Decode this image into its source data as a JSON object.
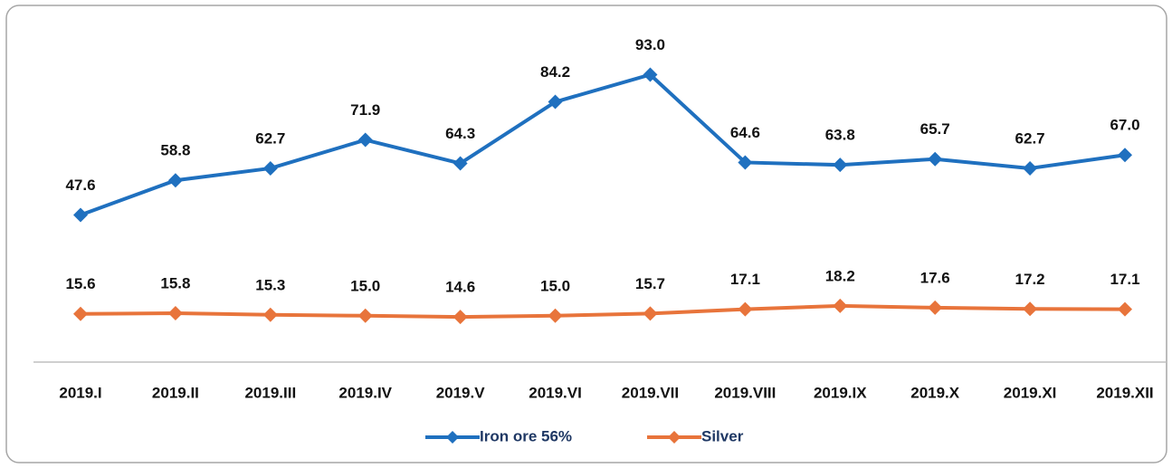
{
  "chart_data": {
    "type": "line",
    "categories": [
      "2019.I",
      "2019.II",
      "2019.III",
      "2019.IV",
      "2019.V",
      "2019.VI",
      "2019.VII",
      "2019.VIII",
      "2019.IX",
      "2019.X",
      "2019.XI",
      "2019.XII"
    ],
    "series": [
      {
        "name": "Iron ore 56%",
        "color": "#1f70bf",
        "values": [
          47.6,
          58.8,
          62.7,
          71.9,
          64.3,
          84.2,
          93.0,
          64.6,
          63.8,
          65.7,
          62.7,
          67.0
        ],
        "value_labels": [
          "47.6",
          "58.8",
          "62.7",
          "71.9",
          "64.3",
          "84.2",
          "93.0",
          "64.6",
          "63.8",
          "65.7",
          "62.7",
          "67.0"
        ]
      },
      {
        "name": "Silver",
        "color": "#e8743b",
        "values": [
          15.6,
          15.8,
          15.3,
          15.0,
          14.6,
          15.0,
          15.7,
          17.1,
          18.2,
          17.6,
          17.2,
          17.1
        ],
        "value_labels": [
          "15.6",
          "15.8",
          "15.3",
          "15.0",
          "14.6",
          "15.0",
          "15.7",
          "17.1",
          "18.2",
          "17.6",
          "17.2",
          "17.1"
        ]
      }
    ],
    "ylim": [
      0,
      100
    ],
    "legend": "bottom"
  }
}
